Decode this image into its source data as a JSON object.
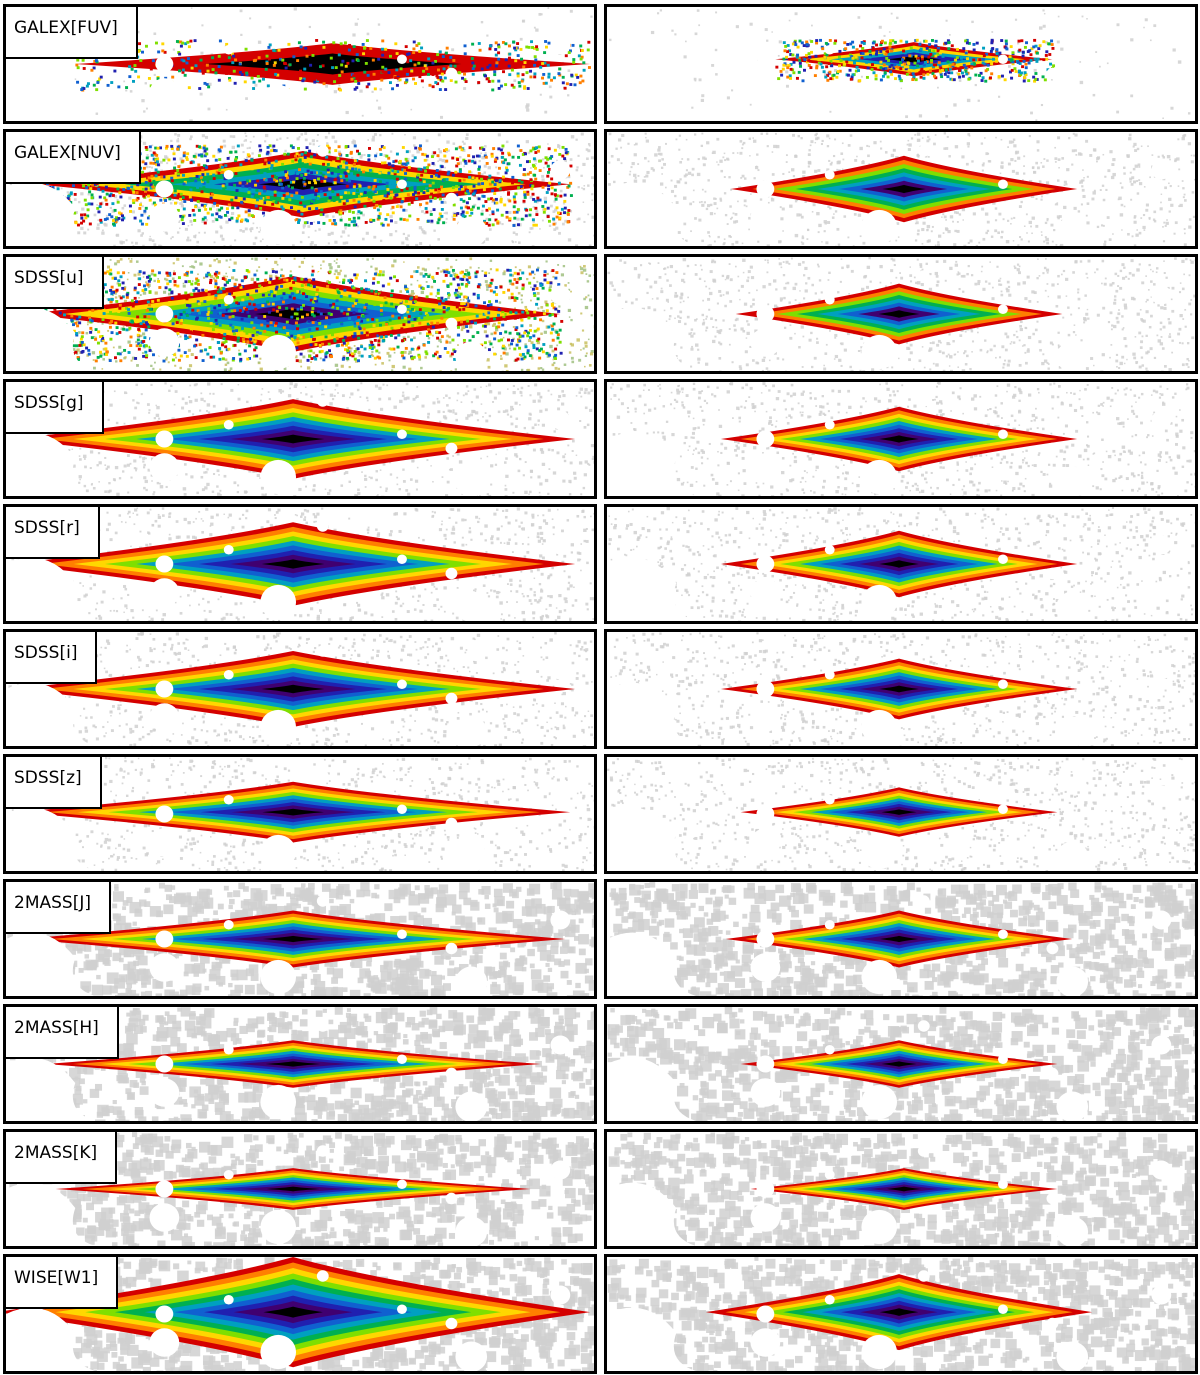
{
  "bands": [
    {
      "label": "GALEX[FUV]"
    },
    {
      "label": "GALEX[NUV]"
    },
    {
      "label": "SDSS[u]"
    },
    {
      "label": "SDSS[g]"
    },
    {
      "label": "SDSS[r]"
    },
    {
      "label": "SDSS[i]"
    },
    {
      "label": "SDSS[z]"
    },
    {
      "label": "2MASS[J]"
    },
    {
      "label": "2MASS[H]"
    },
    {
      "label": "2MASS[K]"
    },
    {
      "label": "WISE[W1]"
    }
  ],
  "colormap": [
    "#d40000",
    "#ff7f00",
    "#ffd700",
    "#7fdf00",
    "#00b050",
    "#00a0c0",
    "#1060d0",
    "#2020b0",
    "#400070",
    "#000000"
  ],
  "mask_color": "#d0d0d0",
  "background_color": "#ffffff"
}
